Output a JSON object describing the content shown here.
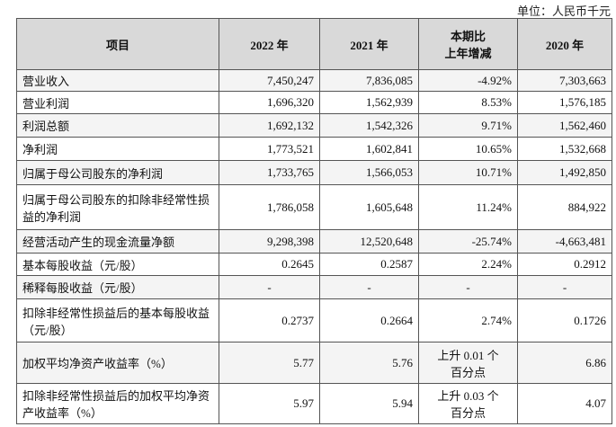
{
  "unit": "单位：人民币千元",
  "table": {
    "header": [
      "项目",
      "2022 年",
      "2021 年",
      [
        "本期比",
        "上年增减"
      ],
      "2020 年"
    ],
    "rows": [
      [
        "营业收入",
        "7,450,247",
        "7,836,085",
        "-4.92%",
        "7,303,663"
      ],
      [
        "营业利润",
        "1,696,320",
        "1,562,939",
        "8.53%",
        "1,576,185"
      ],
      [
        "利润总额",
        "1,692,132",
        "1,542,326",
        "9.71%",
        "1,562,460"
      ],
      [
        "净利润",
        "1,773,521",
        "1,602,841",
        "10.65%",
        "1,532,668"
      ],
      [
        "归属于母公司股东的净利润",
        "1,733,765",
        "1,566,053",
        "10.71%",
        "1,492,850"
      ],
      [
        "归属于母公司股东的扣除非经常性损益的净利润",
        "1,786,058",
        "1,605,648",
        "11.24%",
        "884,922"
      ],
      [
        "经营活动产生的现金流量净额",
        "9,298,398",
        "12,520,648",
        "-25.74%",
        "-4,663,481"
      ],
      [
        "基本每股收益（元/股）",
        "0.2645",
        "0.2587",
        "2.24%",
        "0.2912"
      ],
      [
        "稀释每股收益（元/股）",
        "-",
        "-",
        "-",
        "-"
      ],
      [
        "扣除非经常性损益后的基本每股收益（元/股）",
        "0.2737",
        "0.2664",
        "2.74%",
        "0.1726"
      ],
      [
        "加权平均净资产收益率（%）",
        "5.77",
        "5.76",
        "上升 0.01 个百分点",
        "6.86"
      ],
      [
        "扣除非经常性损益后的加权平均净资产收益率（%）",
        "5.97",
        "5.94",
        "上升 0.03 个百分点",
        "4.07"
      ]
    ]
  }
}
